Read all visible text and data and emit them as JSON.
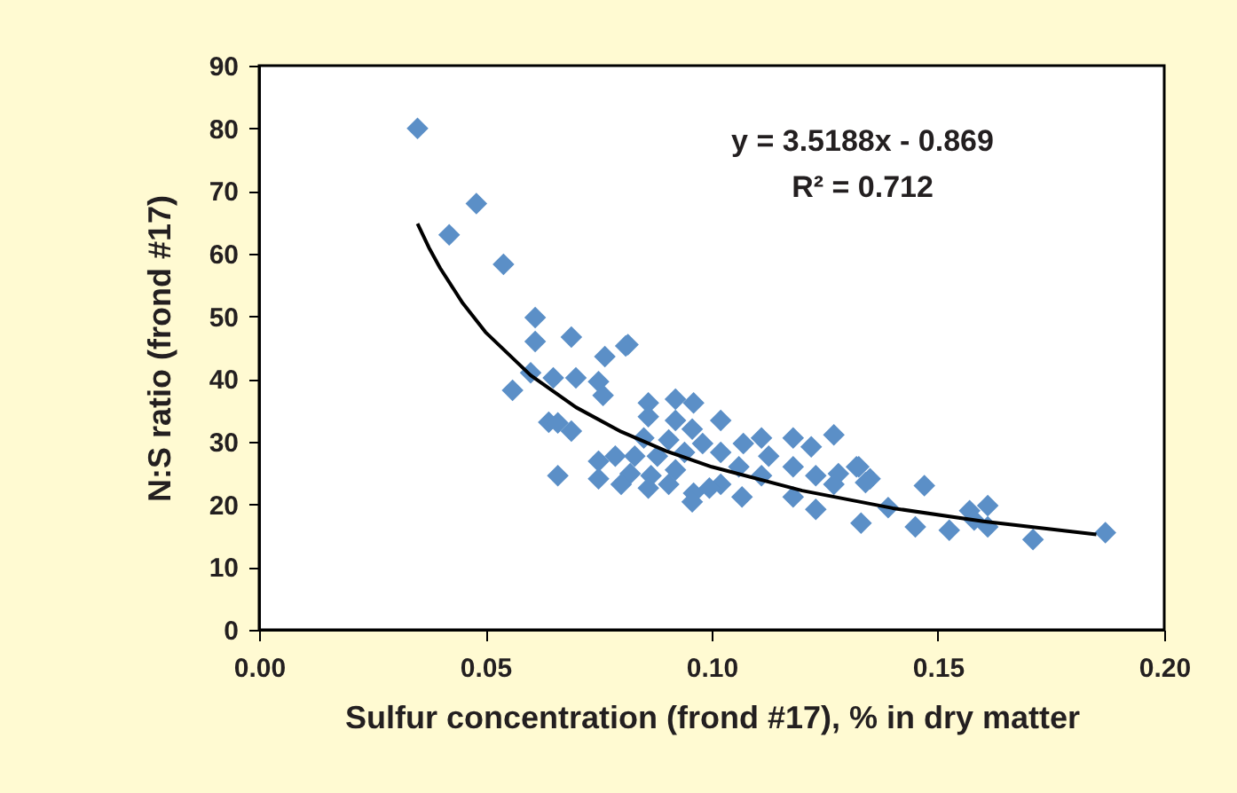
{
  "chart_data": {
    "type": "scatter",
    "xlabel": "Sulfur concentration (frond #17), % in dry matter",
    "ylabel": "N:S ratio (frond #17)",
    "xlim": [
      0,
      0.2
    ],
    "xticks": [
      {
        "value": 0,
        "label": "0.00"
      },
      {
        "value": 0.05,
        "label": "0.05"
      },
      {
        "value": 0.1,
        "label": "0.10"
      },
      {
        "value": 0.15,
        "label": "0.15"
      },
      {
        "value": 0.2,
        "label": "0.20"
      }
    ],
    "ylim": [
      0,
      90
    ],
    "yticks": [
      0,
      10,
      20,
      30,
      40,
      50,
      60,
      70,
      80,
      90
    ],
    "grid": false,
    "annotations": [
      "y = 3.5188x - 0.869",
      "R² = 0.712"
    ],
    "series": [
      {
        "marker": "diamond",
        "color": "#5b8fc7",
        "x": [
          0.035,
          0.048,
          0.042,
          0.054,
          0.061,
          0.061,
          0.069,
          0.0815,
          0.056,
          0.06,
          0.064,
          0.066,
          0.066,
          0.0764,
          0.081,
          0.065,
          0.07,
          0.075,
          0.076,
          0.069,
          0.075,
          0.075,
          0.086,
          0.092,
          0.096,
          0.086,
          0.102,
          0.092,
          0.0957,
          0.085,
          0.0905,
          0.083,
          0.088,
          0.094,
          0.098,
          0.102,
          0.082,
          0.0866,
          0.092,
          0.086,
          0.096,
          0.0905,
          0.102,
          0.1067,
          0.107,
          0.111,
          0.1126,
          0.106,
          0.111,
          0.118,
          0.122,
          0.127,
          0.118,
          0.123,
          0.128,
          0.118,
          0.123,
          0.127,
          0.132,
          0.133,
          0.135,
          0.0957,
          0.0787,
          0.08,
          0.0995,
          0.1325,
          0.134,
          0.139,
          0.145,
          0.147,
          0.1525,
          0.157,
          0.161,
          0.161,
          0.158,
          0.171,
          0.187
        ],
        "values": [
          80,
          68,
          63,
          58.3,
          49.8,
          46,
          46.7,
          45.5,
          38.2,
          41,
          33.1,
          33,
          24.6,
          43.6,
          45.3,
          40.2,
          40.2,
          39.6,
          37.4,
          31.7,
          26.9,
          24.1,
          36.2,
          36.8,
          36.2,
          34,
          33.4,
          33.4,
          32,
          30.6,
          30.3,
          27.7,
          27.7,
          28.3,
          29.7,
          28.3,
          24.9,
          24.6,
          25.5,
          22.6,
          21.8,
          23.2,
          23.2,
          21.2,
          29.7,
          30.6,
          27.7,
          26,
          24.6,
          30.6,
          29.2,
          31.1,
          26,
          24.6,
          24.9,
          21.2,
          19.2,
          23.2,
          26,
          17,
          24.1,
          20.4,
          27.7,
          23.2,
          22.6,
          26,
          23.5,
          19.5,
          16.4,
          23,
          15.9,
          19,
          19.8,
          16.4,
          17.5,
          14.4,
          15.5
        ]
      },
      {
        "type": "line",
        "marker": "none",
        "line_style": "solid",
        "color": "#000000",
        "x": [
          0.035,
          0.0375,
          0.04,
          0.045,
          0.05,
          0.06,
          0.07,
          0.08,
          0.09,
          0.1,
          0.12,
          0.14,
          0.16,
          0.185
        ],
        "values": [
          64.8,
          61.0,
          57.7,
          52.1,
          47.5,
          40.6,
          35.5,
          31.6,
          28.5,
          26.0,
          22.2,
          19.4,
          17.3,
          15.2
        ]
      }
    ]
  }
}
